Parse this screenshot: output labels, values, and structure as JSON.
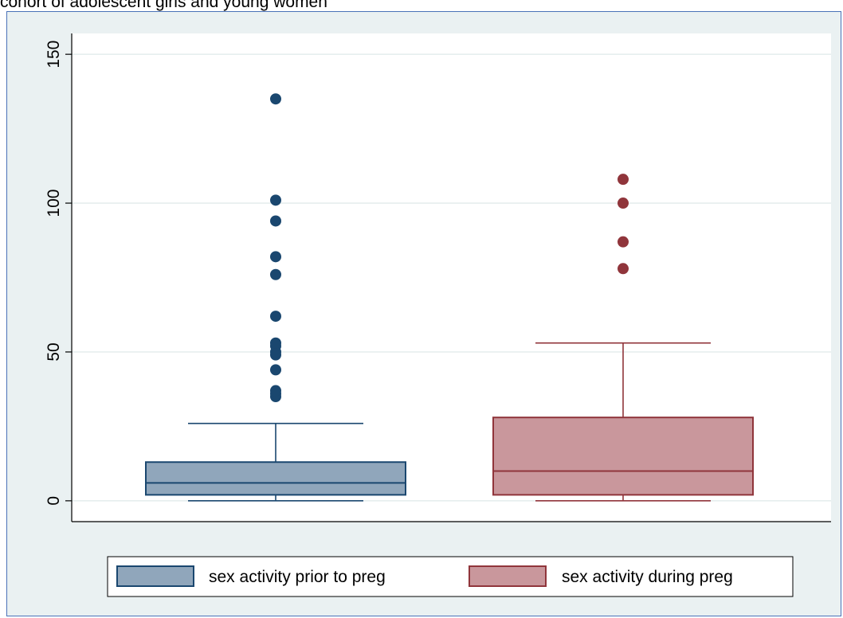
{
  "caption": "cohort of adolescent girls and young women",
  "colors": {
    "background": "#eaf1f2",
    "plot_background": "#ffffff",
    "grid": "#e2ebeb",
    "frame": "#4a72b8",
    "series_prior_fill": "#90a6bb",
    "series_prior_line": "#1a476f",
    "series_during_fill": "#c9979c",
    "series_during_line": "#90353b"
  },
  "chart_data": {
    "type": "box",
    "title": "",
    "xlabel": "",
    "ylabel": "",
    "ylim": [
      -7,
      157
    ],
    "yticks": [
      0,
      50,
      100,
      150
    ],
    "ytick_labels": [
      "0",
      "50",
      "100",
      "150"
    ],
    "grid": true,
    "legend_position": "bottom",
    "series": [
      {
        "name": "sex activity prior to preg",
        "whisker_low": 0,
        "q1": 2,
        "median": 6,
        "q3": 13,
        "whisker_high": 26,
        "outliers": [
          35,
          36,
          37,
          44,
          49,
          50,
          52,
          53,
          62,
          76,
          82,
          94,
          101,
          135
        ]
      },
      {
        "name": "sex activity during preg",
        "whisker_low": 0,
        "q1": 2,
        "median": 10,
        "q3": 28,
        "whisker_high": 53,
        "outliers": [
          78,
          87,
          100,
          108
        ]
      }
    ]
  }
}
